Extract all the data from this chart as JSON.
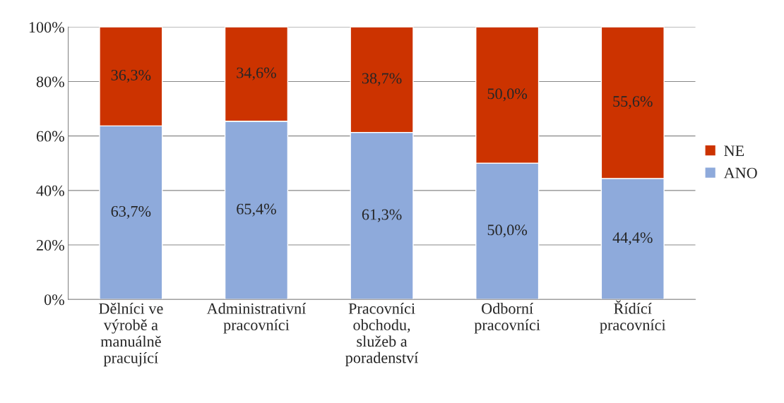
{
  "chart_data": {
    "type": "bar",
    "stacked": true,
    "categories": [
      "Dělníci ve\nvýrobě a\nmanuálně\npracující",
      "Administrativní\npracovníci",
      "Pracovníci\nobchodu,\nslužeb a\nporadenství",
      "Odborní\npracovníci",
      "Řídící\npracovníci"
    ],
    "series": [
      {
        "name": "ANO",
        "color": "#8eaadb",
        "values": [
          63.7,
          65.4,
          61.3,
          50.0,
          44.4
        ],
        "value_labels": [
          "63,7%",
          "65,4%",
          "61,3%",
          "50,0%",
          "44,4%"
        ]
      },
      {
        "name": "NE",
        "color": "#cc3300",
        "values": [
          36.3,
          34.6,
          38.7,
          50.0,
          55.6
        ],
        "value_labels": [
          "36,3%",
          "34,6%",
          "38,7%",
          "50,0%",
          "55,6%"
        ]
      }
    ],
    "ylim": [
      0,
      100
    ],
    "yticks": [
      {
        "value": 0,
        "label": "0%"
      },
      {
        "value": 20,
        "label": "20%"
      },
      {
        "value": 40,
        "label": "40%"
      },
      {
        "value": 60,
        "label": "60%"
      },
      {
        "value": 80,
        "label": "80%"
      },
      {
        "value": 100,
        "label": "100%"
      }
    ],
    "grid": "y",
    "legend": "right"
  }
}
